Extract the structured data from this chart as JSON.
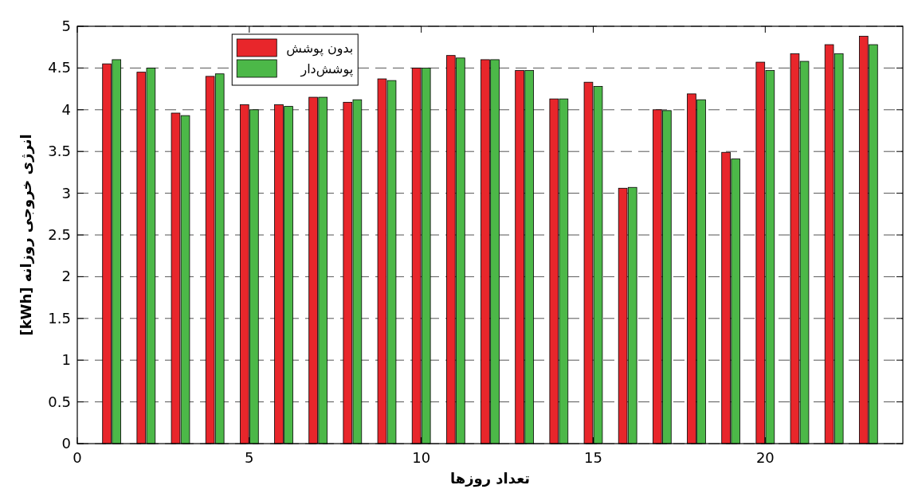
{
  "chart_data": {
    "type": "bar",
    "xlabel": "تعداد روزها",
    "ylabel": "انرژی خروجی روزانه [kWh]",
    "x": [
      1,
      2,
      3,
      4,
      5,
      6,
      7,
      8,
      9,
      10,
      11,
      12,
      13,
      14,
      15,
      16,
      17,
      18,
      19,
      20,
      21,
      22,
      23
    ],
    "series": [
      {
        "name": "بدون پوشش",
        "color": "#e8262b",
        "values": [
          4.55,
          4.45,
          3.96,
          4.4,
          4.06,
          4.06,
          4.15,
          4.09,
          4.37,
          4.5,
          4.65,
          4.6,
          4.47,
          4.13,
          4.33,
          3.06,
          4.0,
          4.19,
          3.49,
          4.57,
          4.67,
          4.78,
          4.88
        ]
      },
      {
        "name": "پوشش‌دار",
        "color": "#4cb848",
        "values": [
          4.6,
          4.5,
          3.93,
          4.43,
          4.0,
          4.04,
          4.15,
          4.12,
          4.35,
          4.5,
          4.62,
          4.6,
          4.47,
          4.13,
          4.28,
          3.07,
          3.99,
          4.12,
          3.41,
          4.47,
          4.58,
          4.67,
          4.78
        ]
      }
    ],
    "xlim": [
      0,
      24
    ],
    "xticks": [
      0,
      5,
      10,
      15,
      20
    ],
    "ylim": [
      0,
      5
    ],
    "yticks": [
      0,
      0.5,
      1,
      1.5,
      2,
      2.5,
      3,
      3.5,
      4,
      4.5,
      5
    ],
    "grid": "y",
    "legend": "top left"
  }
}
